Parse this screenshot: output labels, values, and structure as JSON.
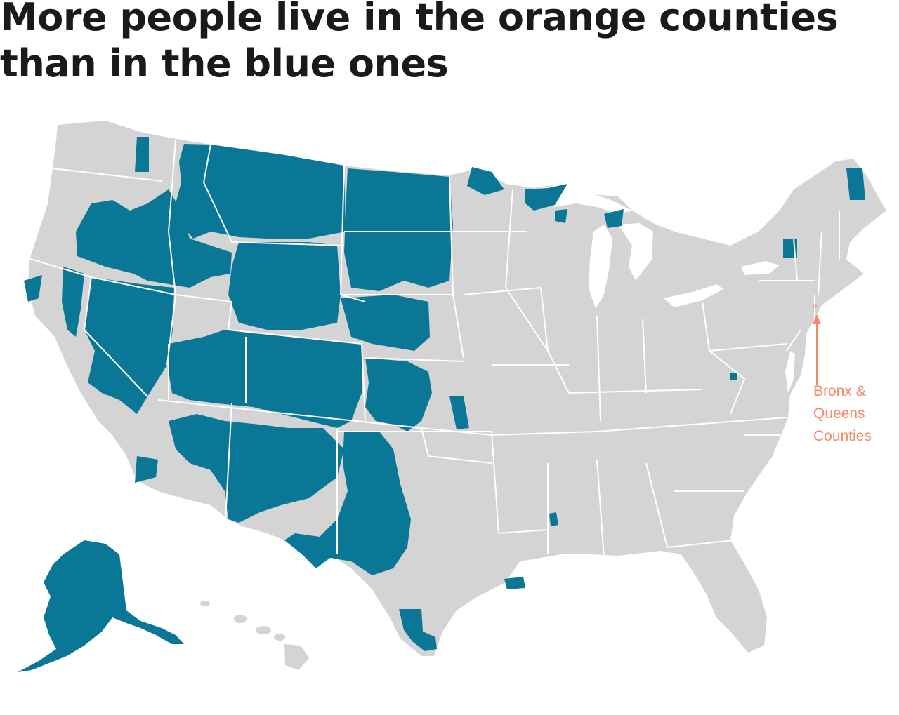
{
  "headline": {
    "line1": "More people live in the orange counties",
    "line2": "than in the blue ones"
  },
  "annotation": {
    "line1": "Bronx &",
    "line2": "Queens",
    "line3": "Counties"
  },
  "colors": {
    "land": "#d4d4d4",
    "borders": "#ffffff",
    "blue_counties": "#0b7797",
    "orange_counties": "#f4886a"
  }
}
